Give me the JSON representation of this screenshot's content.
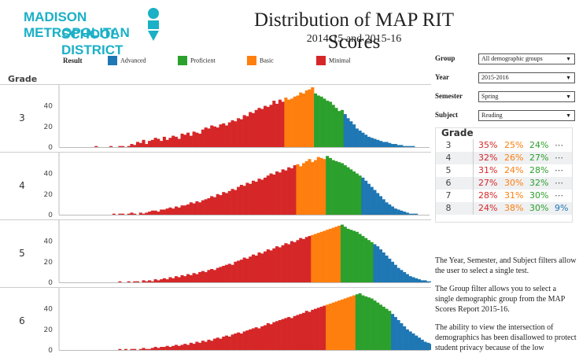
{
  "header": {
    "logo_line1": "MADISON METROPOLITAN",
    "logo_line2": "SCHOOL DISTRICT",
    "title": "Distribution of MAP RIT Scores",
    "subtitle": "2014-15 and 2015-16"
  },
  "legend": {
    "title": "Result",
    "items": [
      {
        "label": "Advanced",
        "color": "#1f77b4"
      },
      {
        "label": "Proficient",
        "color": "#2ca02c"
      },
      {
        "label": "Basic",
        "color": "#ff7f0e"
      },
      {
        "label": "Minimal",
        "color": "#d62728"
      }
    ]
  },
  "grade_header": "Grade",
  "filters": [
    {
      "label": "Group",
      "value": "All demographic groups"
    },
    {
      "label": "Year",
      "value": "2015-2016"
    },
    {
      "label": "Semester",
      "value": "Spring"
    },
    {
      "label": "Subject",
      "value": "Reading"
    }
  ],
  "summary": {
    "header": "Grade",
    "rows": [
      {
        "grade": "3",
        "minimal": "35%",
        "basic": "25%",
        "proficient": "24%",
        "advanced": "⋯"
      },
      {
        "grade": "4",
        "minimal": "32%",
        "basic": "26%",
        "proficient": "27%",
        "advanced": "⋯"
      },
      {
        "grade": "5",
        "minimal": "31%",
        "basic": "24%",
        "proficient": "28%",
        "advanced": "⋯"
      },
      {
        "grade": "6",
        "minimal": "27%",
        "basic": "30%",
        "proficient": "32%",
        "advanced": "⋯"
      },
      {
        "grade": "7",
        "minimal": "28%",
        "basic": "31%",
        "proficient": "30%",
        "advanced": "⋯"
      },
      {
        "grade": "8",
        "minimal": "24%",
        "basic": "38%",
        "proficient": "30%",
        "advanced": "9%"
      }
    ]
  },
  "notes": {
    "p1": "The Year, Semester, and Subject filters allow the user to select a single test.",
    "p2": "The Group filter allows you to select a single demographic group from the MAP Scores Report 2015-16.",
    "p3": "The ability to view the intersection of demographics has been disallowed to protect student privacy because of the low"
  },
  "chart_data": {
    "type": "bar",
    "x_range": [
      0,
      125
    ],
    "ylim": [
      0,
      58
    ],
    "y_ticks": [
      0,
      20,
      40
    ],
    "colors": {
      "Minimal": "#d62728",
      "Basic": "#ff7f0e",
      "Proficient": "#2ca02c",
      "Advanced": "#1f77b4"
    },
    "panels": [
      {
        "grade": "3",
        "start": 12,
        "cuts": [
          76,
          86,
          96
        ],
        "values": [
          1,
          0,
          0,
          0,
          0,
          1,
          0,
          0,
          1,
          1,
          0,
          1,
          3,
          2,
          5,
          4,
          7,
          3,
          6,
          7,
          9,
          8,
          6,
          10,
          7,
          9,
          11,
          10,
          8,
          13,
          12,
          14,
          11,
          15,
          14,
          13,
          17,
          19,
          18,
          21,
          20,
          19,
          22,
          23,
          21,
          24,
          26,
          25,
          28,
          27,
          31,
          30,
          34,
          33,
          36,
          38,
          37,
          40,
          39,
          41,
          45,
          42,
          46,
          44,
          48,
          46,
          47,
          49,
          50,
          53,
          52,
          55,
          56,
          58,
          52,
          50,
          49,
          47,
          45,
          44,
          41,
          38,
          35,
          36,
          32,
          28,
          25,
          22,
          18,
          16,
          14,
          12,
          10,
          9,
          8,
          7,
          6,
          5,
          5,
          4,
          3,
          3,
          2,
          2,
          1,
          1,
          1,
          1
        ]
      },
      {
        "grade": "4",
        "start": 18,
        "cuts": [
          80,
          90,
          102
        ],
        "values": [
          1,
          0,
          1,
          1,
          0,
          1,
          2,
          1,
          0,
          2,
          1,
          2,
          3,
          4,
          4,
          3,
          5,
          5,
          6,
          7,
          6,
          8,
          7,
          9,
          9,
          10,
          12,
          11,
          13,
          12,
          14,
          15,
          16,
          18,
          17,
          20,
          19,
          22,
          21,
          23,
          25,
          24,
          27,
          29,
          28,
          31,
          30,
          33,
          32,
          35,
          34,
          36,
          38,
          40,
          39,
          42,
          41,
          44,
          43,
          46,
          45,
          48,
          49,
          47,
          50,
          52,
          54,
          51,
          53,
          56,
          55,
          54,
          57,
          55,
          53,
          52,
          51,
          50,
          48,
          46,
          44,
          42,
          40,
          38,
          36,
          33,
          30,
          27,
          24,
          21,
          18,
          15,
          12,
          10,
          8,
          6,
          5,
          4,
          3,
          2,
          1,
          1,
          1
        ]
      },
      {
        "grade": "5",
        "start": 20,
        "cuts": [
          85,
          95,
          106
        ],
        "values": [
          1,
          0,
          0,
          1,
          0,
          1,
          1,
          0,
          2,
          1,
          2,
          1,
          3,
          2,
          3,
          4,
          3,
          5,
          4,
          6,
          5,
          7,
          6,
          8,
          7,
          9,
          8,
          10,
          11,
          10,
          12,
          13,
          12,
          14,
          15,
          16,
          17,
          18,
          17,
          20,
          21,
          22,
          24,
          23,
          25,
          27,
          26,
          29,
          28,
          30,
          32,
          31,
          33,
          35,
          34,
          36,
          38,
          37,
          40,
          39,
          41,
          43,
          42,
          44,
          45,
          46,
          47,
          48,
          49,
          50,
          51,
          52,
          53,
          54,
          55,
          56,
          54,
          52,
          51,
          50,
          49,
          47,
          45,
          43,
          41,
          39,
          37,
          35,
          32,
          29,
          26,
          23,
          20,
          17,
          14,
          12,
          10,
          8,
          6,
          5,
          4,
          3,
          2,
          2,
          1,
          1
        ]
      },
      {
        "grade": "6",
        "start": 20,
        "cuts": [
          90,
          100,
          112
        ],
        "values": [
          1,
          0,
          1,
          0,
          1,
          1,
          0,
          1,
          2,
          1,
          1,
          2,
          3,
          2,
          3,
          3,
          4,
          3,
          4,
          5,
          4,
          5,
          6,
          5,
          7,
          6,
          8,
          7,
          9,
          8,
          10,
          9,
          11,
          12,
          11,
          13,
          14,
          13,
          15,
          16,
          17,
          16,
          18,
          19,
          20,
          21,
          22,
          21,
          23,
          24,
          26,
          25,
          27,
          28,
          29,
          30,
          31,
          32,
          31,
          33,
          34,
          35,
          36,
          38,
          37,
          39,
          40,
          41,
          42,
          43,
          44,
          45,
          46,
          47,
          48,
          49,
          50,
          51,
          52,
          53,
          54,
          55,
          53,
          52,
          51,
          50,
          48,
          46,
          44,
          42,
          40,
          38,
          35,
          32,
          29,
          26,
          23,
          20,
          18,
          16,
          14,
          12,
          10,
          8,
          7,
          6,
          5,
          4,
          3,
          2,
          2,
          1,
          1
        ]
      }
    ]
  }
}
